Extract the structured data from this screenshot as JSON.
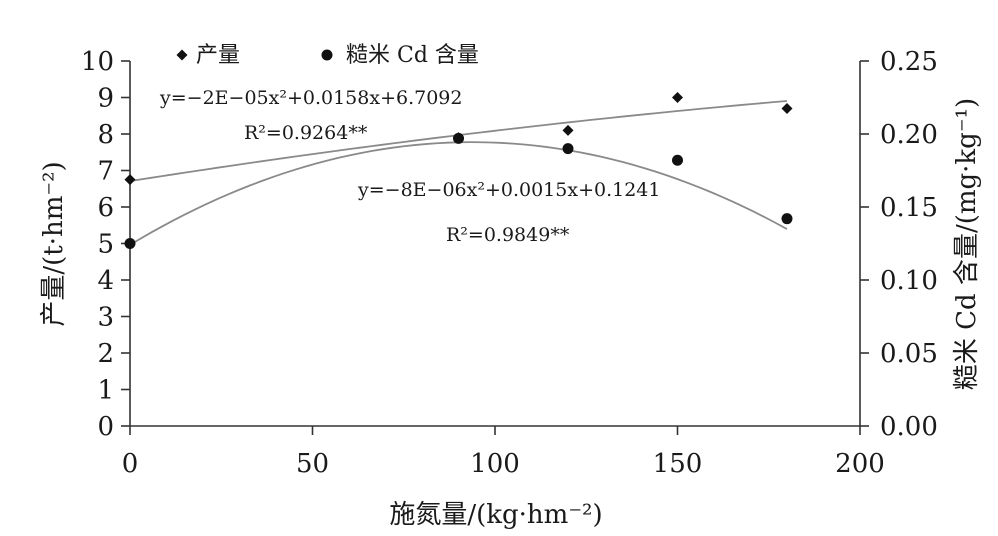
{
  "chart_data": {
    "type": "scatter",
    "x_axis": {
      "label": "施氮量/(kg·hm⁻²)",
      "min": 0,
      "max": 200,
      "ticks": [
        0,
        50,
        100,
        150,
        200
      ],
      "tick_labels": [
        "0",
        "50",
        "100",
        "150",
        "200"
      ]
    },
    "y_axis_left": {
      "label": "产量/(t·hm⁻²)",
      "min": 0,
      "max": 10,
      "ticks": [
        0,
        1,
        2,
        3,
        4,
        5,
        6,
        7,
        8,
        9,
        10
      ],
      "tick_labels": [
        "0",
        "1",
        "2",
        "3",
        "4",
        "5",
        "6",
        "7",
        "8",
        "9",
        "10"
      ]
    },
    "y_axis_right": {
      "label": "糙米 Cd 含量/(mg·kg⁻¹)",
      "min": 0,
      "max": 0.25,
      "ticks": [
        0,
        0.05,
        0.1,
        0.15,
        0.2,
        0.25
      ],
      "tick_labels": [
        "0.00",
        "0.05",
        "0.10",
        "0.15",
        "0.20",
        "0.25"
      ]
    },
    "legend_position": "top-left",
    "grid": false,
    "series": [
      {
        "name": "产量",
        "axis": "left",
        "marker": "diamond",
        "x": [
          0,
          90,
          120,
          150,
          180
        ],
        "y": [
          6.75,
          7.9,
          8.1,
          9.0,
          8.7
        ],
        "trend": {
          "type": "poly2",
          "a": -2e-05,
          "b": 0.0158,
          "c": 6.7092
        },
        "equation": "y=−2E−05x²+0.0158x+6.7092",
        "r2": "R²=0.9264**"
      },
      {
        "name": "糙米 Cd 含量",
        "axis": "right",
        "marker": "circle",
        "x": [
          0,
          90,
          120,
          150,
          180
        ],
        "y": [
          0.125,
          0.197,
          0.19,
          0.182,
          0.142
        ],
        "trend": {
          "type": "poly2",
          "a": -8e-06,
          "b": 0.0015,
          "c": 0.1241
        },
        "equation": "y=−8E−06x²+0.0015x+0.1241",
        "r2": "R²=0.9849**"
      }
    ]
  }
}
